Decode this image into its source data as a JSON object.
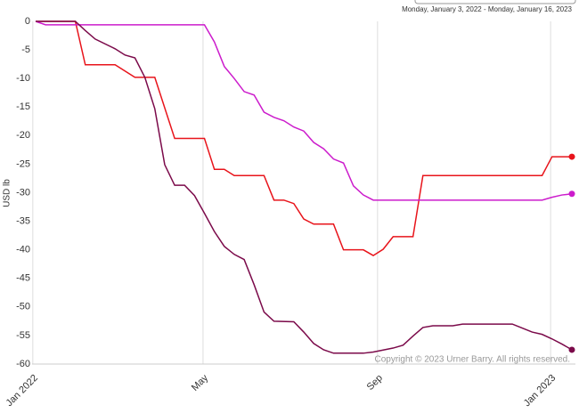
{
  "chart_data": {
    "type": "line",
    "subtitle": "Monday, January 3, 2022 - Monday, January 16, 2023",
    "y_label": "USD lb",
    "annotation": "Copyright © 2023 Urner Barry. All rights reserved.",
    "xlim": [
      "2022-01-03",
      "2023-01-16"
    ],
    "xticks": [
      {
        "value": "2022-01-01",
        "label": "Jan 2022"
      },
      {
        "value": "2022-05-01",
        "label": "May"
      },
      {
        "value": "2022-09-01",
        "label": "Sep"
      },
      {
        "value": "2023-01-01",
        "label": "Jan 2023"
      }
    ],
    "ylim": [
      -60,
      0
    ],
    "yticks": [
      0,
      -5,
      -10,
      -15,
      -20,
      -25,
      -30,
      -35,
      -40,
      -45,
      -50,
      -55,
      -60
    ],
    "grid": "x",
    "series": [
      {
        "color": "#e8141b",
        "x": [
          "2022-01-03",
          "2022-01-31",
          "2022-02-07",
          "2022-02-28",
          "2022-03-14",
          "2022-03-28",
          "2022-04-11",
          "2022-05-02",
          "2022-05-09",
          "2022-05-16",
          "2022-05-23",
          "2022-06-13",
          "2022-06-20",
          "2022-06-27",
          "2022-07-04",
          "2022-07-11",
          "2022-07-18",
          "2022-08-01",
          "2022-08-08",
          "2022-08-22",
          "2022-08-29",
          "2022-09-05",
          "2022-09-12",
          "2022-09-26",
          "2022-10-03",
          "2022-12-26",
          "2023-01-02",
          "2023-01-16"
        ],
        "values": [
          0,
          0,
          -7.6,
          -7.6,
          -9.8,
          -9.8,
          -20.5,
          -20.5,
          -25.9,
          -25.9,
          -27,
          -27,
          -31.3,
          -31.3,
          -31.9,
          -34.6,
          -35.5,
          -35.5,
          -40,
          -40,
          -41,
          -39.9,
          -37.7,
          -37.7,
          -27,
          -27,
          -23.7,
          -23.7
        ]
      },
      {
        "color": "#cc1ccc",
        "x": [
          "2022-01-03",
          "2022-01-10",
          "2022-05-02",
          "2022-05-09",
          "2022-05-16",
          "2022-05-23",
          "2022-05-30",
          "2022-06-06",
          "2022-06-13",
          "2022-06-20",
          "2022-06-27",
          "2022-07-04",
          "2022-07-11",
          "2022-07-18",
          "2022-07-25",
          "2022-08-01",
          "2022-08-08",
          "2022-08-15",
          "2022-08-22",
          "2022-08-29",
          "2022-12-26",
          "2023-01-02",
          "2023-01-09",
          "2023-01-16"
        ],
        "values": [
          0,
          -0.6,
          -0.6,
          -3.6,
          -7.9,
          -10,
          -12.3,
          -12.9,
          -15.9,
          -16.8,
          -17.4,
          -18.5,
          -19.2,
          -21.2,
          -22.3,
          -24.1,
          -24.8,
          -28.8,
          -30.4,
          -31.3,
          -31.3,
          -30.8,
          -30.4,
          -30.2
        ]
      },
      {
        "color": "#7b0a4a",
        "x": [
          "2022-01-03",
          "2022-01-31",
          "2022-02-07",
          "2022-02-14",
          "2022-02-28",
          "2022-03-07",
          "2022-03-14",
          "2022-03-21",
          "2022-03-28",
          "2022-04-04",
          "2022-04-11",
          "2022-04-18",
          "2022-04-25",
          "2022-05-02",
          "2022-05-09",
          "2022-05-16",
          "2022-05-23",
          "2022-05-30",
          "2022-06-06",
          "2022-06-13",
          "2022-06-20",
          "2022-07-04",
          "2022-07-11",
          "2022-07-18",
          "2022-07-25",
          "2022-08-01",
          "2022-08-22",
          "2022-08-29",
          "2022-09-12",
          "2022-09-19",
          "2022-09-26",
          "2022-10-03",
          "2022-10-10",
          "2022-10-24",
          "2022-10-31",
          "2022-12-05",
          "2022-12-12",
          "2022-12-19",
          "2022-12-26",
          "2023-01-02",
          "2023-01-09",
          "2023-01-16"
        ],
        "values": [
          0,
          0,
          -1.6,
          -3.1,
          -4.8,
          -5.9,
          -6.4,
          -9.8,
          -15.3,
          -25.1,
          -28.7,
          -28.7,
          -30.5,
          -33.6,
          -36.8,
          -39.4,
          -40.8,
          -41.7,
          -46.1,
          -50.9,
          -52.5,
          -52.6,
          -54.4,
          -56.4,
          -57.5,
          -58.1,
          -58.1,
          -57.9,
          -57.2,
          -56.7,
          -55.1,
          -53.6,
          -53.3,
          -53.3,
          -53,
          -53,
          -53.7,
          -54.4,
          -54.8,
          -55.6,
          -56.5,
          -57.5
        ]
      }
    ]
  }
}
